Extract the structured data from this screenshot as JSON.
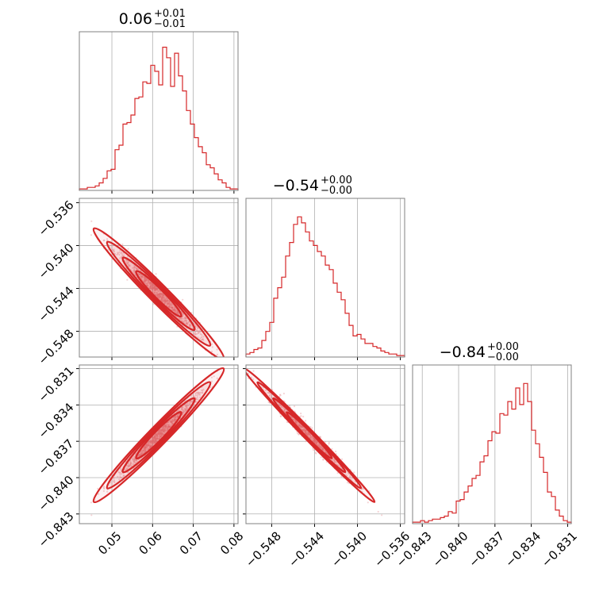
{
  "chart_data": {
    "type": "corner",
    "colors": {
      "line": "#d62728",
      "grid": "#b0b0b0",
      "frame": "#808080",
      "scatter": "#e8a0a3"
    },
    "parameters": [
      {
        "range": [
          0.042,
          0.081
        ],
        "ticks": [
          "0.05",
          "0.06",
          "0.07",
          "0.08"
        ],
        "tick_values": [
          0.05,
          0.06,
          0.07,
          0.08
        ]
      },
      {
        "range": [
          -0.5504,
          -0.5356
        ],
        "ticks": [
          "−0.548",
          "−0.544",
          "−0.540",
          "−0.536"
        ],
        "tick_values": [
          -0.548,
          -0.544,
          -0.54,
          -0.536
        ]
      },
      {
        "range": [
          -0.8438,
          -0.8307
        ],
        "ticks": [
          "−0.843",
          "−0.840",
          "−0.837",
          "−0.834",
          "−0.831"
        ],
        "tick_values": [
          -0.843,
          -0.84,
          -0.837,
          -0.834,
          -0.831
        ]
      }
    ],
    "titles": [
      {
        "main": "0.06",
        "upper": "+0.01",
        "lower": "−0.01"
      },
      {
        "main": "−0.54",
        "upper": "+0.00",
        "lower": "−0.00"
      },
      {
        "main": "−0.84",
        "upper": "+0.00",
        "lower": "−0.00"
      }
    ],
    "histograms": [
      {
        "bins": 40,
        "counts": [
          0.01,
          0.01,
          0.02,
          0.02,
          0.03,
          0.05,
          0.08,
          0.13,
          0.14,
          0.27,
          0.3,
          0.44,
          0.45,
          0.5,
          0.61,
          0.62,
          0.72,
          0.71,
          0.83,
          0.79,
          0.7,
          0.95,
          0.88,
          0.69,
          0.91,
          0.76,
          0.66,
          0.53,
          0.44,
          0.35,
          0.29,
          0.25,
          0.17,
          0.15,
          0.11,
          0.07,
          0.05,
          0.02,
          0.01,
          0.01
        ]
      },
      {
        "bins": 40,
        "counts": [
          0.02,
          0.03,
          0.05,
          0.06,
          0.11,
          0.17,
          0.23,
          0.39,
          0.46,
          0.53,
          0.67,
          0.76,
          0.88,
          0.93,
          0.89,
          0.83,
          0.77,
          0.74,
          0.7,
          0.67,
          0.61,
          0.58,
          0.49,
          0.43,
          0.38,
          0.29,
          0.21,
          0.14,
          0.15,
          0.12,
          0.09,
          0.09,
          0.07,
          0.06,
          0.04,
          0.03,
          0.02,
          0.02,
          0.01,
          0.01
        ]
      },
      {
        "bins": 40,
        "counts": [
          0.01,
          0.01,
          0.02,
          0.01,
          0.02,
          0.03,
          0.03,
          0.04,
          0.05,
          0.08,
          0.07,
          0.15,
          0.16,
          0.21,
          0.25,
          0.3,
          0.32,
          0.41,
          0.45,
          0.55,
          0.61,
          0.6,
          0.73,
          0.72,
          0.81,
          0.76,
          0.9,
          0.79,
          0.93,
          0.81,
          0.62,
          0.53,
          0.44,
          0.34,
          0.21,
          0.18,
          0.09,
          0.05,
          0.02,
          0.01
        ]
      }
    ],
    "correlations": [
      {
        "x_param": 0,
        "y_param": 1,
        "rho": -0.985
      },
      {
        "x_param": 0,
        "y_param": 2,
        "rho": 0.985
      },
      {
        "x_param": 1,
        "y_param": 2,
        "rho": -0.997
      }
    ]
  }
}
